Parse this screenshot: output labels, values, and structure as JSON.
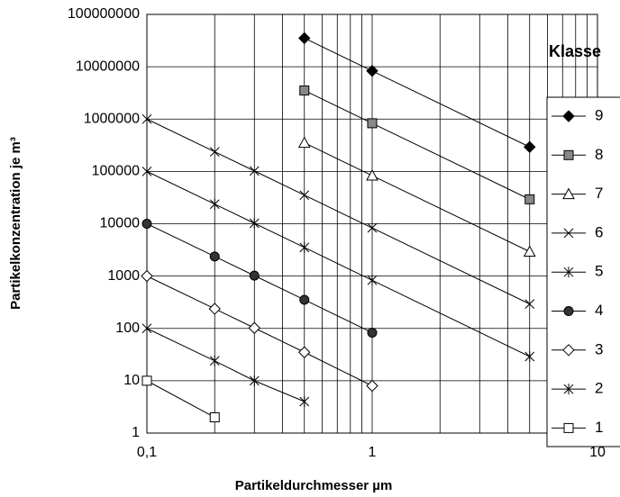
{
  "chart_data": {
    "type": "line",
    "x_label": "Partikeldurchmesser µm",
    "y_label": "Partikelkonzentration je m³",
    "xlog": true,
    "ylog": true,
    "grid": true,
    "minor_grid": true,
    "legend_title": "Klasse",
    "legend_position": "right",
    "xlim": [
      0.1,
      10
    ],
    "ylim": [
      1,
      100000000
    ],
    "xticks": [
      {
        "value": 0.1,
        "label": "0,1"
      },
      1,
      10
    ],
    "yticks": [
      1,
      10,
      100,
      1000,
      10000,
      100000,
      1000000,
      10000000,
      100000000
    ],
    "series": [
      {
        "name": "9",
        "color": "#000",
        "marker": "diamond-filled",
        "x": [
          0.5,
          1,
          5
        ],
        "values": [
          35200000,
          8320000,
          293000
        ]
      },
      {
        "name": "8",
        "color": "#000",
        "marker": "square-gray",
        "x": [
          0.5,
          1,
          5
        ],
        "values": [
          3520000,
          832000,
          29300
        ]
      },
      {
        "name": "7",
        "color": "#000",
        "marker": "triangle-open",
        "x": [
          0.5,
          1,
          5
        ],
        "values": [
          352000,
          83200,
          2930
        ]
      },
      {
        "name": "6",
        "color": "#000",
        "marker": "x",
        "x": [
          0.1,
          0.2,
          0.3,
          0.5,
          1,
          5
        ],
        "values": [
          1000000,
          237000,
          102000,
          35200,
          8320,
          293
        ]
      },
      {
        "name": "5",
        "color": "#000",
        "marker": "asterisk",
        "x": [
          0.1,
          0.2,
          0.3,
          0.5,
          1,
          5
        ],
        "values": [
          100000,
          23700,
          10200,
          3520,
          832,
          29
        ]
      },
      {
        "name": "4",
        "color": "#000",
        "marker": "circle-filled",
        "x": [
          0.1,
          0.2,
          0.3,
          0.5,
          1
        ],
        "values": [
          10000,
          2370,
          1020,
          352,
          83
        ]
      },
      {
        "name": "3",
        "color": "#000",
        "marker": "diamond-open",
        "x": [
          0.1,
          0.2,
          0.3,
          0.5,
          1
        ],
        "values": [
          1000,
          237,
          102,
          35,
          8
        ]
      },
      {
        "name": "2",
        "color": "#000",
        "marker": "asterisk",
        "x": [
          0.1,
          0.2,
          0.3,
          0.5
        ],
        "values": [
          100,
          24,
          10,
          4
        ]
      },
      {
        "name": "1",
        "color": "#000",
        "marker": "square-open",
        "x": [
          0.1,
          0.2
        ],
        "values": [
          10,
          2
        ]
      }
    ]
  }
}
